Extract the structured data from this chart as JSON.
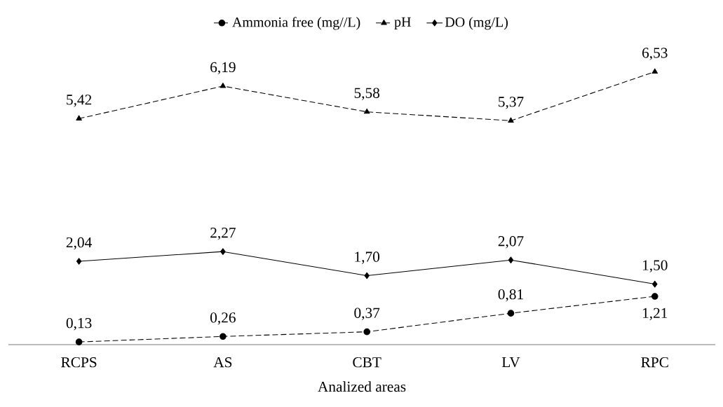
{
  "chart_data": {
    "type": "line",
    "xlabel": "Analized areas",
    "categories": [
      "RCPS",
      "AS",
      "CBT",
      "LV",
      "RPC"
    ],
    "series": [
      {
        "name": "Ammonia free (mg//L)",
        "color": "#000000",
        "marker": "circle",
        "line_style": "dashed",
        "values": [
          0.13,
          0.26,
          0.37,
          0.81,
          1.21
        ],
        "value_labels": [
          "0,13",
          "0,26",
          "0,37",
          "0,81",
          "1,21"
        ]
      },
      {
        "name": "pH",
        "color": "#000000",
        "marker": "triangle",
        "line_style": "dashed",
        "values": [
          5.42,
          6.19,
          5.58,
          5.37,
          6.53
        ],
        "value_labels": [
          "5,42",
          "6,19",
          "5,58",
          "5,37",
          "6,53"
        ]
      },
      {
        "name": "DO (mg/L)",
        "color": "#000000",
        "marker": "diamond",
        "line_style": "solid",
        "values": [
          2.04,
          2.27,
          1.7,
          2.07,
          1.5
        ],
        "value_labels": [
          "2,04",
          "2,27",
          "1,70",
          "2,07",
          "1,50"
        ]
      }
    ],
    "legend": "top",
    "grid": false
  }
}
